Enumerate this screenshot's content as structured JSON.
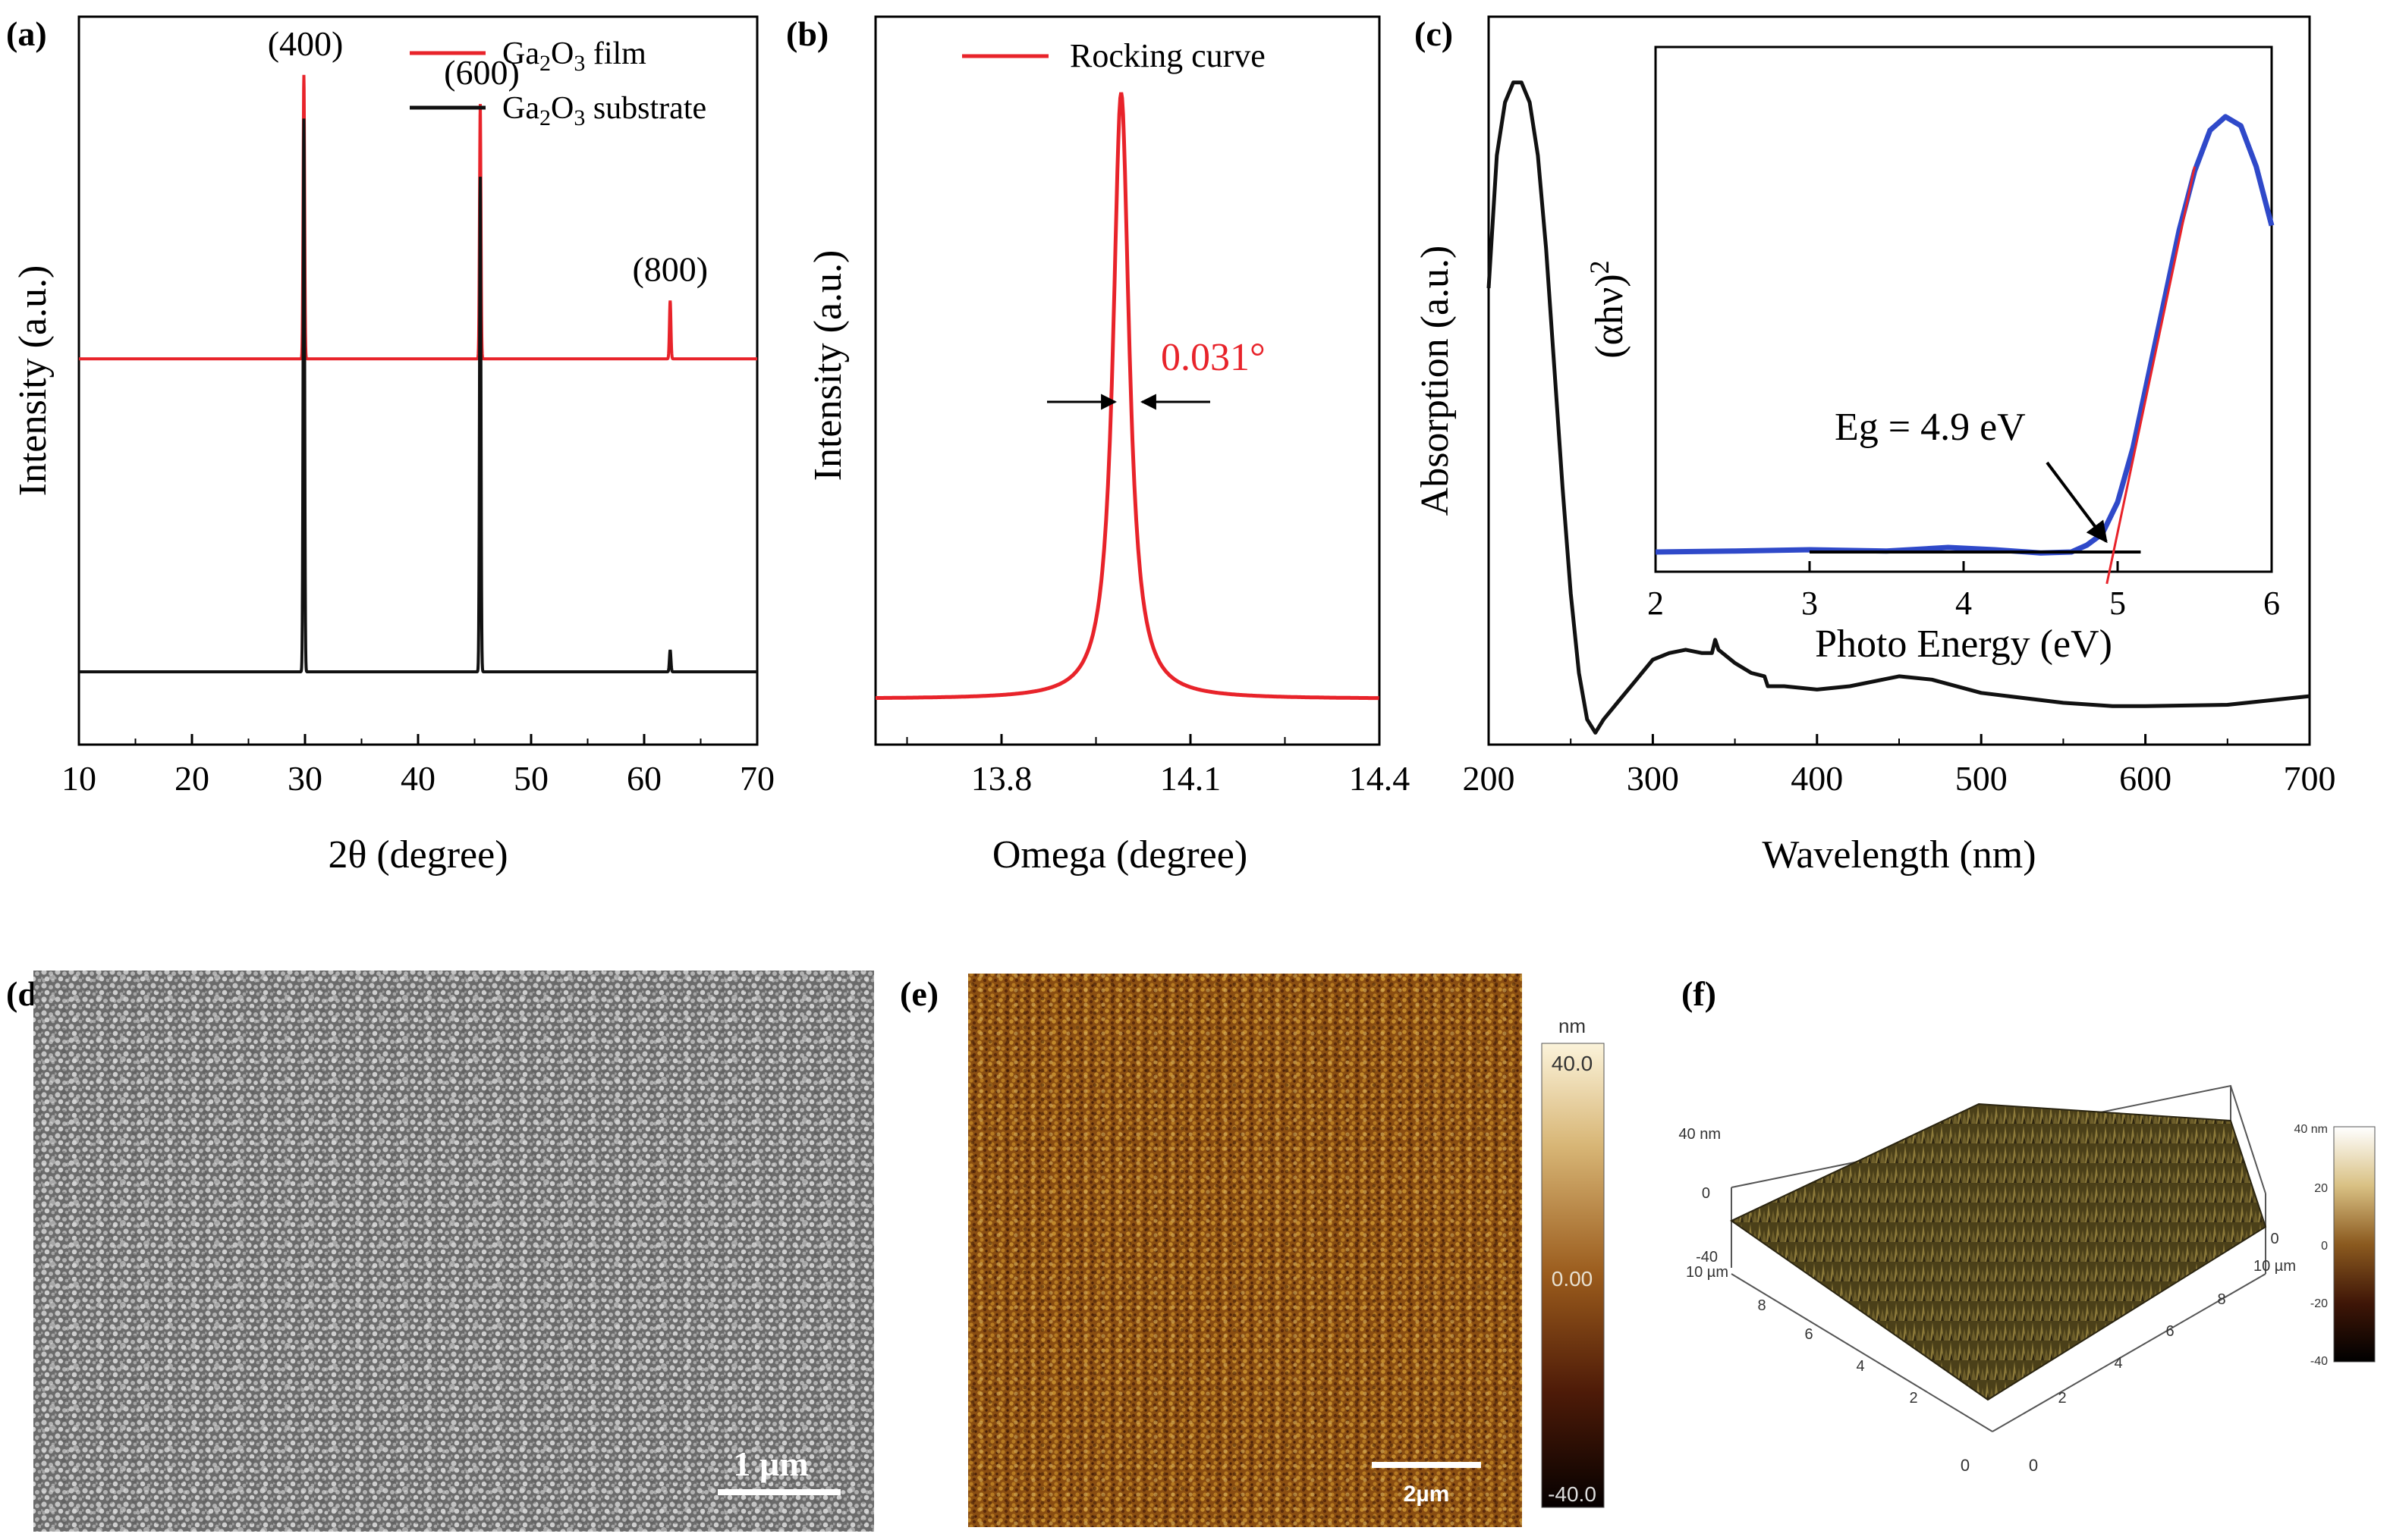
{
  "figure": {
    "panel_labels": [
      "(a)",
      "(b)",
      "(c)",
      "(d)",
      "(e)",
      "(f)"
    ]
  },
  "colors": {
    "red": "#e8232a",
    "black": "#111111",
    "blue": "#2f49c9"
  },
  "chart_data": [
    {
      "id": "a",
      "type": "line",
      "title": "",
      "xlabel": "2θ (degree)",
      "ylabel": "Intensity (a.u.)",
      "xlim": [
        10,
        70
      ],
      "ylim": [
        0,
        100
      ],
      "xticks": [
        10,
        20,
        30,
        40,
        50,
        60,
        70
      ],
      "legend": [
        {
          "main": "Ga",
          "sub1": "2",
          "mid": "O",
          "sub2": "3",
          "suffix": " film",
          "color": "#e8232a"
        },
        {
          "main": "Ga",
          "sub1": "2",
          "mid": "O",
          "sub2": "3",
          "suffix": " substrate",
          "color": "#111111"
        }
      ],
      "series": [
        {
          "name": "Ga2O3 film",
          "baseline": 53,
          "peaks": [
            [
              29.9,
              92
            ],
            [
              45.5,
              88
            ],
            [
              62.3,
              61
            ]
          ]
        },
        {
          "name": "Ga2O3 substrate",
          "baseline": 10,
          "peaks": [
            [
              29.9,
              86
            ],
            [
              45.5,
              78
            ],
            [
              62.3,
              13
            ]
          ]
        }
      ],
      "annotations": [
        {
          "text": "(400)",
          "x": 29.9
        },
        {
          "text": "(600)",
          "x": 45.5
        },
        {
          "text": "(800)",
          "x": 62.3
        }
      ]
    },
    {
      "id": "b",
      "type": "line",
      "title": "",
      "xlabel": "Omega (degree)",
      "ylabel": "Intensity (a.u.)",
      "xlim": [
        13.6,
        14.4
      ],
      "ylim": [
        0,
        100
      ],
      "xticks": [
        13.8,
        14.1,
        14.4
      ],
      "xtick_labels": [
        "13.8",
        "14.1",
        "14.4"
      ],
      "legend": [
        {
          "name": "Rocking curve",
          "color": "#e8232a"
        }
      ],
      "series": [
        {
          "name": "Rocking curve",
          "center": 13.99,
          "fwhm": 0.031,
          "baseline": 7,
          "peak": 100
        }
      ],
      "annotations": [
        {
          "text": "0.031°"
        }
      ]
    },
    {
      "id": "c",
      "type": "line",
      "title": "",
      "xlabel": "Wavelength (nm)",
      "ylabel": "Absorption (a.u.)",
      "xlim": [
        200,
        700
      ],
      "ylim": [
        0,
        100
      ],
      "xticks": [
        200,
        300,
        400,
        500,
        600,
        700
      ],
      "series": [
        {
          "name": "Absorption",
          "x": [
            200,
            205,
            210,
            215,
            220,
            225,
            230,
            235,
            240,
            245,
            250,
            255,
            260,
            265,
            270,
            280,
            290,
            300,
            310,
            320,
            330,
            336,
            338,
            340,
            350,
            360,
            368,
            370,
            380,
            400,
            420,
            450,
            470,
            500,
            550,
            580,
            600,
            650,
            700
          ],
          "y": [
            68,
            88,
            96,
            99,
            99,
            96,
            88,
            74,
            56,
            38,
            22,
            10,
            3,
            1,
            3,
            6,
            9,
            12,
            13,
            13.5,
            13,
            13,
            15,
            13.5,
            11.5,
            10,
            9.5,
            8,
            8,
            7.5,
            8,
            9.5,
            9,
            7,
            5.5,
            5,
            5,
            5.2,
            6.5
          ]
        }
      ],
      "inset": {
        "xlabel": "Photo Energy (eV)",
        "ylabel": "(αhν)",
        "ylabel_sup": "2",
        "xlim": [
          2,
          6
        ],
        "ylim": [
          0,
          100
        ],
        "xticks": [
          2,
          3,
          4,
          5,
          6
        ],
        "series": {
          "name": "(αhν)^2",
          "x": [
            2.0,
            2.5,
            3.0,
            3.5,
            3.9,
            4.2,
            4.5,
            4.7,
            4.8,
            4.9,
            5.0,
            5.1,
            5.2,
            5.3,
            5.4,
            5.5,
            5.6,
            5.7,
            5.8,
            5.9,
            6.0
          ],
          "y": [
            1,
            1.2,
            1.5,
            1.2,
            2,
            1.5,
            0.8,
            1,
            2.5,
            5,
            12,
            24,
            40,
            56,
            72,
            85,
            94,
            97,
            95,
            86,
            73
          ]
        },
        "tangent": {
          "x": [
            4.93,
            5.5
          ],
          "y": [
            -6,
            86
          ]
        },
        "baseline_fit": {
          "x": [
            3.0,
            5.15
          ],
          "y": [
            1,
            1
          ]
        },
        "annotation": {
          "text": "Eg = 4.9 eV",
          "arrow_to": [
            4.95,
            1
          ]
        }
      }
    }
  ],
  "images": {
    "d": {
      "scale_bar": "1 µm"
    },
    "e": {
      "scale_bar": "2µm",
      "colorbar_unit": "nm",
      "colorbar_ticks": [
        "40.0",
        "0.00",
        "-40.0"
      ]
    },
    "f": {
      "z_ticks": [
        "40 nm",
        "0",
        "-40"
      ],
      "left_axis": [
        "10 µm",
        "8",
        "6",
        "4",
        "2",
        "0"
      ],
      "right_axis": [
        "0",
        "2",
        "4",
        "6",
        "8",
        "10 µm"
      ],
      "back_right": "0",
      "colorbar_ticks": [
        "40 nm",
        "20",
        "0",
        "-20",
        "-40"
      ]
    }
  }
}
